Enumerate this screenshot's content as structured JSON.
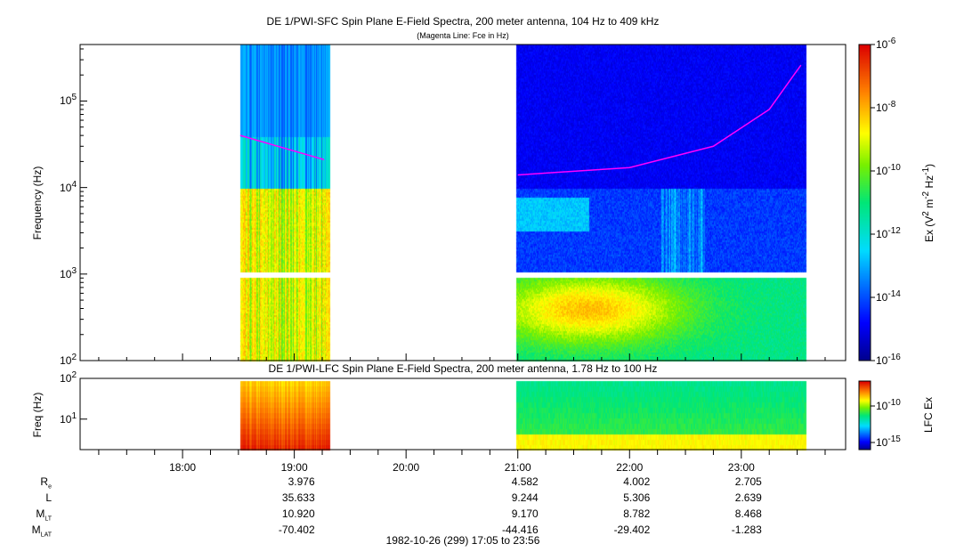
{
  "chart_data": [
    {
      "type": "heatmap",
      "title": "DE 1/PWI-SFC  Spin Plane E-Field Spectra, 200 meter antenna, 104 Hz to 409 kHz",
      "subtitle": "(Magenta Line: Fce in Hz)",
      "ylabel": "Frequency (Hz)",
      "yscale": "log",
      "ylim": [
        100,
        450000
      ],
      "yticks": [
        "10^2",
        "10^3",
        "10^4",
        "10^5"
      ],
      "xlim": [
        "17:05",
        "23:56"
      ],
      "xticks": [
        "18:00",
        "19:00",
        "20:00",
        "21:00",
        "22:00",
        "23:00"
      ],
      "data_intervals": [
        [
          "18:31",
          "19:19"
        ],
        [
          "20:59",
          "23:35"
        ]
      ],
      "colorbar": {
        "label": "Ex (V^2 m^-2 Hz^-1)",
        "scale": "log",
        "range": [
          1e-16,
          1e-06
        ],
        "ticks": [
          "10^-6",
          "10^-8",
          "10^-10",
          "10^-12",
          "10^-14",
          "10^-16"
        ]
      },
      "fce_line": {
        "color": "#ff00ff",
        "segments": [
          [
            [
              "18:31",
              40000
            ],
            [
              "19:16",
              21000
            ]
          ],
          [
            [
              "21:00",
              14000
            ],
            [
              "22:00",
              17000
            ],
            [
              "22:45",
              30000
            ],
            [
              "23:15",
              80000
            ],
            [
              "23:32",
              260000
            ]
          ]
        ]
      }
    },
    {
      "type": "heatmap",
      "title": "DE 1/PWI-LFC  Spin Plane E-Field Spectra, 200 meter antenna, 1.78 Hz to 100 Hz",
      "ylabel": "Freq (Hz)",
      "yscale": "log",
      "ylim": [
        1.78,
        100
      ],
      "yticks": [
        "10^1",
        "10^2"
      ],
      "data_intervals": [
        [
          "18:31",
          "19:19"
        ],
        [
          "20:59",
          "23:35"
        ]
      ],
      "colorbar": {
        "label": "LFC Ex",
        "scale": "log",
        "ticks": [
          "10^-10",
          "10^-15"
        ]
      }
    }
  ],
  "ephemeris": {
    "rows": [
      {
        "label": "R",
        "sub": "e",
        "values": [
          "3.976",
          "4.582",
          "4.002",
          "2.705"
        ]
      },
      {
        "label": "L",
        "sub": "",
        "values": [
          "35.633",
          "9.244",
          "5.306",
          "2.639"
        ]
      },
      {
        "label": "M",
        "sub": "LT",
        "values": [
          "10.920",
          "9.170",
          "8.782",
          "8.468"
        ]
      },
      {
        "label": "M",
        "sub": "LAT",
        "values": [
          "-70.402",
          "-44.416",
          "-29.402",
          "-1.283"
        ]
      }
    ],
    "times": [
      "19:00",
      "21:00",
      "22:00",
      "23:00"
    ]
  },
  "footer": "1982-10-26 (299) 17:05 to 23:56"
}
